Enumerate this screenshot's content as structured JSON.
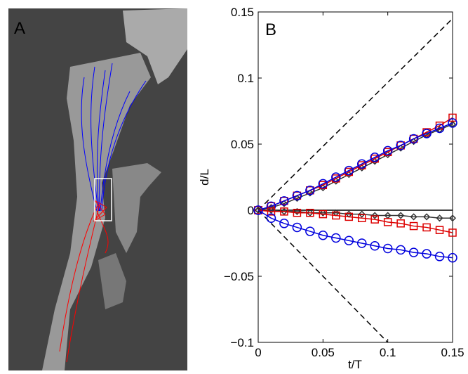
{
  "panel_a": {
    "label": "A"
  },
  "chart_data": {
    "type": "line",
    "panel_label": "B",
    "xlabel": "t/T",
    "ylabel": "d/L",
    "xlim": [
      0,
      0.15
    ],
    "ylim": [
      -0.1,
      0.15
    ],
    "xticks": [
      0,
      0.05,
      0.1,
      0.15
    ],
    "yticks": [
      {
        "value": -0.1,
        "label": "−0.1"
      },
      {
        "value": -0.05,
        "label": "−0.05"
      },
      0,
      0.05,
      0.1,
      0.15
    ],
    "x": [
      0,
      0.01,
      0.02,
      0.03,
      0.04,
      0.05,
      0.06,
      0.07,
      0.08,
      0.09,
      0.1,
      0.11,
      0.12,
      0.13,
      0.14,
      0.15
    ],
    "reference_lines": [
      {
        "x": [
          0,
          0.15
        ],
        "values": [
          0,
          0.145
        ],
        "color": "#000000",
        "dash": true
      },
      {
        "x": [
          0,
          0.1
        ],
        "values": [
          0,
          -0.1
        ],
        "color": "#000000",
        "dash": true
      },
      {
        "x": [
          0,
          0.15
        ],
        "values": [
          0,
          0
        ],
        "color": "#000000",
        "dash": false
      }
    ],
    "series": [
      {
        "color": "#333333",
        "marker": "diamond",
        "values": [
          0,
          0.002,
          0.005,
          0.009,
          0.013,
          0.017,
          0.022,
          0.027,
          0.032,
          0.037,
          0.042,
          0.047,
          0.052,
          0.057,
          0.061,
          0.065
        ]
      },
      {
        "color": "#dd0000",
        "marker": "square",
        "values": [
          0,
          0.003,
          0.007,
          0.011,
          0.015,
          0.019,
          0.024,
          0.029,
          0.034,
          0.039,
          0.044,
          0.049,
          0.054,
          0.059,
          0.064,
          0.07
        ]
      },
      {
        "color": "#0000dd",
        "marker": "circle",
        "values": [
          0,
          0.003,
          0.007,
          0.011,
          0.015,
          0.02,
          0.025,
          0.03,
          0.035,
          0.04,
          0.045,
          0.049,
          0.054,
          0.058,
          0.062,
          0.066
        ]
      },
      {
        "color": "#333333",
        "marker": "diamond",
        "values": [
          0,
          0,
          -0.001,
          -0.001,
          -0.002,
          -0.002,
          -0.002,
          -0.003,
          -0.003,
          -0.004,
          -0.004,
          -0.004,
          -0.005,
          -0.005,
          -0.006,
          -0.006
        ]
      },
      {
        "color": "#dd0000",
        "marker": "square",
        "values": [
          0,
          -0.001,
          -0.001,
          -0.002,
          -0.002,
          -0.003,
          -0.004,
          -0.005,
          -0.006,
          -0.007,
          -0.009,
          -0.01,
          -0.012,
          -0.013,
          -0.015,
          -0.017
        ]
      },
      {
        "color": "#0000dd",
        "marker": "circle",
        "values": [
          0,
          -0.006,
          -0.01,
          -0.013,
          -0.016,
          -0.019,
          -0.021,
          -0.023,
          -0.025,
          -0.027,
          -0.029,
          -0.03,
          -0.032,
          -0.033,
          -0.035,
          -0.036
        ]
      }
    ]
  }
}
